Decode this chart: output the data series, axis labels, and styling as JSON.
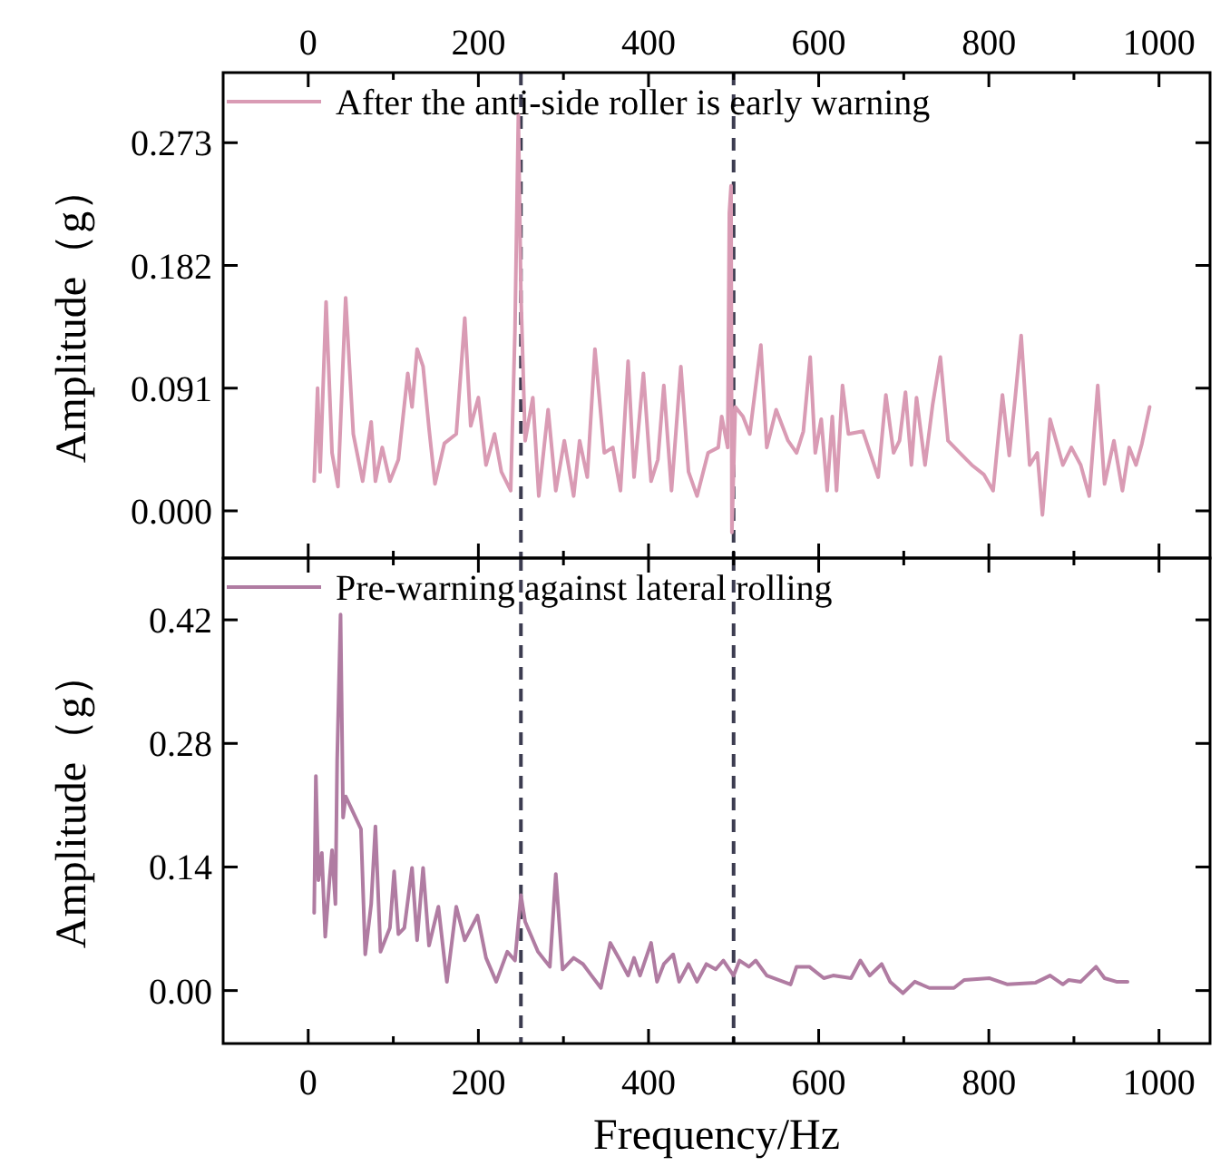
{
  "chart_data": [
    {
      "type": "line",
      "xlim": [
        -100,
        1060
      ],
      "xticks": [
        0,
        200,
        400,
        600,
        800,
        1000
      ],
      "tick_labels": "y",
      "x2lim": [
        -100,
        1060
      ],
      "x2ticks": [
        0,
        200,
        400,
        600,
        800,
        1000
      ],
      "ylim": [
        -0.035,
        0.325
      ],
      "yticks": [
        {
          "value": 0,
          "label": "0.000"
        },
        {
          "value": 0.091,
          "label": "0.091"
        },
        {
          "value": 0.182,
          "label": "0.182"
        },
        {
          "value": 0.273,
          "label": "0.273"
        }
      ],
      "ylabel": "Amplitude（g）",
      "legend": "top left",
      "line_style": "solid",
      "ref_lines": [
        {
          "axis": "x",
          "value": 250,
          "color": "#3c3c50",
          "line_style": "dashed"
        },
        {
          "axis": "x",
          "value": 500,
          "color": "#3c3c50",
          "line_style": "dashed"
        }
      ],
      "series": [
        {
          "name": "After the anti-side roller is early warning",
          "color": "#d99bb4",
          "x": [
            7,
            11,
            14,
            21,
            28,
            35,
            44,
            53,
            64,
            74,
            79,
            87,
            96,
            106,
            117,
            122,
            128,
            135,
            142,
            149,
            160,
            174,
            184,
            191,
            200,
            209,
            219,
            227,
            238,
            243,
            247,
            250,
            255,
            264,
            271,
            282,
            291,
            301,
            312,
            319,
            328,
            337,
            348,
            358,
            367,
            376,
            383,
            394,
            403,
            411,
            418,
            427,
            438,
            447,
            457,
            470,
            482,
            486,
            493,
            495,
            497,
            498,
            502,
            511,
            519,
            532,
            539,
            550,
            564,
            574,
            582,
            590,
            596,
            603,
            610,
            616,
            621,
            628,
            635,
            652,
            670,
            679,
            688,
            695,
            702,
            709,
            715,
            725,
            734,
            743,
            752,
            766,
            780,
            794,
            805,
            816,
            824,
            831,
            838,
            848,
            857,
            863,
            872,
            887,
            897,
            908,
            918,
            928,
            936,
            947,
            957,
            965,
            973,
            980,
            989
          ],
          "values": [
            0.022,
            0.091,
            0.029,
            0.155,
            0.043,
            0.018,
            0.158,
            0.057,
            0.022,
            0.066,
            0.022,
            0.047,
            0.022,
            0.038,
            0.102,
            0.077,
            0.12,
            0.107,
            0.061,
            0.02,
            0.05,
            0.057,
            0.143,
            0.063,
            0.084,
            0.034,
            0.057,
            0.029,
            0.015,
            0.134,
            0.294,
            0.161,
            0.052,
            0.084,
            0.011,
            0.075,
            0.015,
            0.052,
            0.011,
            0.052,
            0.025,
            0.12,
            0.043,
            0.047,
            0.015,
            0.111,
            0.025,
            0.102,
            0.022,
            0.038,
            0.093,
            0.015,
            0.107,
            0.029,
            0.011,
            0.043,
            0.047,
            0.07,
            0.047,
            0.221,
            0.241,
            -0.016,
            0.077,
            0.07,
            0.057,
            0.123,
            0.047,
            0.075,
            0.052,
            0.043,
            0.059,
            0.114,
            0.043,
            0.068,
            0.015,
            0.07,
            0.015,
            0.093,
            0.057,
            0.059,
            0.025,
            0.086,
            0.043,
            0.052,
            0.088,
            0.034,
            0.084,
            0.034,
            0.079,
            0.114,
            0.052,
            0.043,
            0.034,
            0.027,
            0.015,
            0.086,
            0.041,
            0.084,
            0.13,
            0.034,
            0.043,
            -0.003,
            0.068,
            0.034,
            0.047,
            0.034,
            0.011,
            0.093,
            0.02,
            0.052,
            0.015,
            0.047,
            0.034,
            0.05,
            0.077
          ]
        }
      ]
    },
    {
      "type": "line",
      "xlim": [
        -100,
        1060
      ],
      "xticks": [
        0,
        200,
        400,
        600,
        800,
        1000
      ],
      "ylim": [
        -0.06,
        0.49
      ],
      "yticks": [
        {
          "value": 0,
          "label": "0.00"
        },
        {
          "value": 0.14,
          "label": "0.14"
        },
        {
          "value": 0.28,
          "label": "0.28"
        },
        {
          "value": 0.42,
          "label": "0.42"
        }
      ],
      "xlabel": "Frequency/Hz",
      "ylabel": "Amplitude（g）",
      "legend": "top left",
      "line_style": "solid",
      "ref_lines": [
        {
          "axis": "x",
          "value": 250,
          "color": "#3c3c50",
          "line_style": "dashed"
        },
        {
          "axis": "x",
          "value": 500,
          "color": "#3c3c50",
          "line_style": "dashed"
        }
      ],
      "series": [
        {
          "name": "Pre-warning against lateral rolling",
          "color": "#b07ca2",
          "x": [
            7,
            9,
            12,
            16,
            20,
            25,
            28,
            32,
            34,
            38,
            41,
            44,
            62,
            67,
            74,
            79,
            85,
            96,
            101,
            106,
            113,
            122,
            128,
            135,
            142,
            153,
            163,
            174,
            184,
            199,
            209,
            221,
            234,
            243,
            250,
            255,
            270,
            284,
            291,
            299,
            312,
            323,
            333,
            344,
            355,
            365,
            376,
            383,
            390,
            403,
            410,
            418,
            429,
            436,
            447,
            457,
            468,
            479,
            488,
            500,
            507,
            518,
            526,
            539,
            567,
            574,
            589,
            606,
            617,
            638,
            649,
            660,
            674,
            684,
            699,
            713,
            730,
            759,
            771,
            801,
            822,
            855,
            872,
            887,
            894,
            908,
            926,
            936,
            950,
            963
          ],
          "values": [
            0.088,
            0.243,
            0.125,
            0.156,
            0.061,
            0.125,
            0.159,
            0.098,
            0.26,
            0.426,
            0.196,
            0.22,
            0.183,
            0.041,
            0.098,
            0.186,
            0.044,
            0.071,
            0.135,
            0.064,
            0.071,
            0.139,
            0.057,
            0.139,
            0.051,
            0.095,
            0.01,
            0.095,
            0.057,
            0.085,
            0.037,
            0.01,
            0.044,
            0.034,
            0.108,
            0.078,
            0.044,
            0.027,
            0.132,
            0.024,
            0.037,
            0.03,
            0.017,
            0.003,
            0.054,
            0.037,
            0.017,
            0.037,
            0.017,
            0.054,
            0.01,
            0.03,
            0.041,
            0.01,
            0.03,
            0.01,
            0.03,
            0.024,
            0.034,
            0.017,
            0.034,
            0.027,
            0.034,
            0.017,
            0.007,
            0.027,
            0.027,
            0.014,
            0.017,
            0.014,
            0.034,
            0.017,
            0.03,
            0.01,
            -0.003,
            0.01,
            0.003,
            0.003,
            0.012,
            0.014,
            0.007,
            0.009,
            0.017,
            0.007,
            0.012,
            0.01,
            0.027,
            0.014,
            0.01,
            0.01
          ]
        }
      ]
    }
  ]
}
